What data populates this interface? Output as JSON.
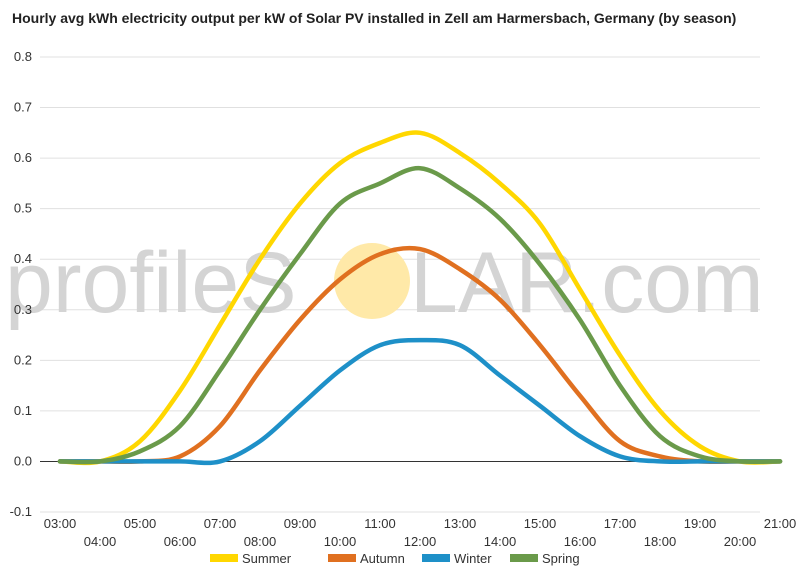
{
  "chart_data": {
    "type": "line",
    "title": "Hourly avg kWh electricity output per kW of Solar PV installed in Zell am Harmersbach, Germany (by season)",
    "xlabel": "",
    "ylabel": "",
    "x_ticks": [
      "03:00",
      "04:00",
      "05:00",
      "06:00",
      "07:00",
      "08:00",
      "09:00",
      "10:00",
      "11:00",
      "12:00",
      "13:00",
      "14:00",
      "15:00",
      "16:00",
      "17:00",
      "18:00",
      "19:00",
      "20:00",
      "21:00"
    ],
    "y_ticks": [
      "0.8",
      "0.7",
      "0.6",
      "0.5",
      "0.4",
      "0.3",
      "0.2",
      "0.1",
      "0.0",
      "-0.1"
    ],
    "ylim": [
      -0.1,
      0.8
    ],
    "xlim": [
      3,
      21
    ],
    "grid": true,
    "legend_position": "bottom",
    "x_hours": [
      3,
      4,
      5,
      6,
      7,
      8,
      9,
      10,
      11,
      12,
      13,
      14,
      15,
      16,
      17,
      18,
      19,
      20,
      21
    ],
    "series": [
      {
        "name": "Summer",
        "color": "#FFD700",
        "values": [
          0.0,
          0.0,
          0.04,
          0.14,
          0.27,
          0.4,
          0.51,
          0.59,
          0.63,
          0.65,
          0.61,
          0.55,
          0.47,
          0.34,
          0.21,
          0.1,
          0.03,
          0.0,
          0.0
        ]
      },
      {
        "name": "Autumn",
        "color": "#E07020",
        "values": [
          0.0,
          0.0,
          0.0,
          0.01,
          0.07,
          0.18,
          0.28,
          0.36,
          0.41,
          0.42,
          0.38,
          0.32,
          0.23,
          0.13,
          0.04,
          0.01,
          0.0,
          0.0,
          0.0
        ]
      },
      {
        "name": "Winter",
        "color": "#1E90C8",
        "values": [
          0.0,
          0.0,
          0.0,
          0.0,
          0.0,
          0.04,
          0.11,
          0.18,
          0.23,
          0.24,
          0.23,
          0.17,
          0.11,
          0.05,
          0.01,
          0.0,
          0.0,
          0.0,
          0.0
        ]
      },
      {
        "name": "Spring",
        "color": "#6A9A4A",
        "values": [
          0.0,
          0.0,
          0.02,
          0.07,
          0.18,
          0.3,
          0.41,
          0.51,
          0.55,
          0.58,
          0.54,
          0.48,
          0.39,
          0.28,
          0.15,
          0.05,
          0.01,
          0.0,
          0.0
        ]
      }
    ]
  },
  "watermark": {
    "text_left": "profileS",
    "text_right": "LAR.com",
    "sun_color": "#FFE9A8"
  }
}
